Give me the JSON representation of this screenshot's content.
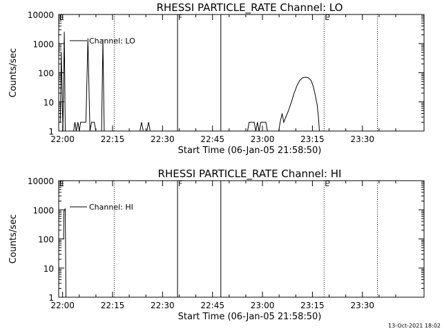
{
  "footer": {
    "timestamp": "13-Oct-2021 18:02"
  },
  "chart_data": [
    {
      "type": "line",
      "title": "RHESSI PARTICLE_RATE Channel: LO",
      "xlabel": "Start Time (06-Jan-05 21:58:50)",
      "ylabel": "Counts/sec",
      "yscale": "log",
      "x_unit": "minutes after 22:00",
      "xlim": [
        -1.17,
        108.5
      ],
      "ylim": [
        1,
        10000
      ],
      "x_ticks": [
        0,
        15,
        30,
        45,
        60,
        75,
        90
      ],
      "x_tick_labels": [
        "22:00",
        "22:15",
        "22:30",
        "22:45",
        "23:00",
        "23:15",
        "23:30"
      ],
      "y_ticks": [
        1,
        10,
        100,
        1000,
        10000
      ],
      "y_tick_labels": [
        "1",
        "10",
        "100",
        "1000",
        "10000"
      ],
      "legend": {
        "entries": [
          "Channel: LO"
        ],
        "position": "top-left"
      },
      "grid": false,
      "markers": [
        {
          "label": "E",
          "x": -1.17,
          "style": "solid"
        },
        {
          "label": "",
          "x": 15.5,
          "style": "dotted"
        },
        {
          "label": "F",
          "x": 34.5,
          "style": "solid"
        },
        {
          "label": "",
          "x": 47.5,
          "style": "solid"
        },
        {
          "label": "E",
          "x": 78.5,
          "style": "dotted"
        },
        {
          "label": "",
          "x": 94.5,
          "style": "dotted"
        }
      ],
      "series": [
        {
          "name": "Channel: LO",
          "points": [
            [
              -0.7,
              2
            ],
            [
              -0.4,
              500
            ],
            [
              0.1,
              1
            ],
            [
              0.5,
              2500
            ],
            [
              0.8,
              1
            ],
            [
              3.3,
              1
            ],
            [
              3.7,
              2
            ],
            [
              4.1,
              1
            ],
            [
              4.6,
              2
            ],
            [
              5.0,
              1
            ],
            [
              5.4,
              2
            ],
            [
              6.4,
              2
            ],
            [
              7.0,
              2
            ],
            [
              7.6,
              1500
            ],
            [
              8.2,
              1
            ],
            [
              8.7,
              2
            ],
            [
              9.5,
              2
            ],
            [
              10.0,
              1
            ],
            [
              11.7,
              1
            ],
            [
              12.1,
              1400
            ],
            [
              12.5,
              1
            ],
            [
              23.2,
              1
            ],
            [
              23.7,
              2
            ],
            [
              24.2,
              1
            ],
            [
              25.3,
              1
            ],
            [
              25.8,
              2
            ],
            [
              26.3,
              1
            ],
            [
              55.5,
              1
            ],
            [
              56.0,
              2
            ],
            [
              57.5,
              2
            ],
            [
              58.0,
              1
            ],
            [
              58.5,
              2
            ],
            [
              59.0,
              1
            ],
            [
              59.5,
              2
            ],
            [
              61.0,
              2
            ],
            [
              61.5,
              1
            ],
            [
              64.9,
              1
            ],
            [
              65.3,
              2
            ],
            [
              65.9,
              4
            ],
            [
              66.4,
              2
            ],
            [
              67.0,
              3
            ],
            [
              67.8,
              5
            ],
            [
              68.7,
              10
            ],
            [
              69.5,
              20
            ],
            [
              70.4,
              37
            ],
            [
              71.2,
              55
            ],
            [
              72.1,
              68
            ],
            [
              72.9,
              70
            ],
            [
              73.7,
              68
            ],
            [
              74.6,
              55
            ],
            [
              75.2,
              35
            ],
            [
              75.8,
              18
            ],
            [
              76.4,
              8
            ],
            [
              76.8,
              3
            ],
            [
              77.1,
              1
            ]
          ]
        }
      ]
    },
    {
      "type": "line",
      "title": "RHESSI PARTICLE_RATE Channel: HI",
      "xlabel": "Start Time (06-Jan-05 21:58:50)",
      "ylabel": "Counts/sec",
      "yscale": "log",
      "x_unit": "minutes after 22:00",
      "xlim": [
        -1.17,
        108.5
      ],
      "ylim": [
        1,
        10000
      ],
      "x_ticks": [
        0,
        15,
        30,
        45,
        60,
        75,
        90
      ],
      "x_tick_labels": [
        "22:00",
        "22:15",
        "22:30",
        "22:45",
        "23:00",
        "23:15",
        "23:30"
      ],
      "y_ticks": [
        1,
        10,
        100,
        1000,
        10000
      ],
      "y_tick_labels": [
        "1",
        "10",
        "100",
        "1000",
        "10000"
      ],
      "legend": {
        "entries": [
          "Channel: HI"
        ],
        "position": "top-left"
      },
      "grid": false,
      "markers": [
        {
          "label": "E",
          "x": -1.17,
          "style": "solid"
        },
        {
          "label": "",
          "x": 15.5,
          "style": "dotted"
        },
        {
          "label": "F",
          "x": 34.5,
          "style": "solid"
        },
        {
          "label": "",
          "x": 47.5,
          "style": "solid"
        },
        {
          "label": "E",
          "x": 78.5,
          "style": "dotted"
        },
        {
          "label": "",
          "x": 94.5,
          "style": "dotted"
        }
      ],
      "series": [
        {
          "name": "Channel: HI",
          "points": [
            [
              -1.17,
              100
            ],
            [
              0.3,
              100
            ],
            [
              0.4,
              900
            ],
            [
              0.8,
              1100
            ],
            [
              1.0,
              1
            ]
          ]
        }
      ]
    }
  ]
}
